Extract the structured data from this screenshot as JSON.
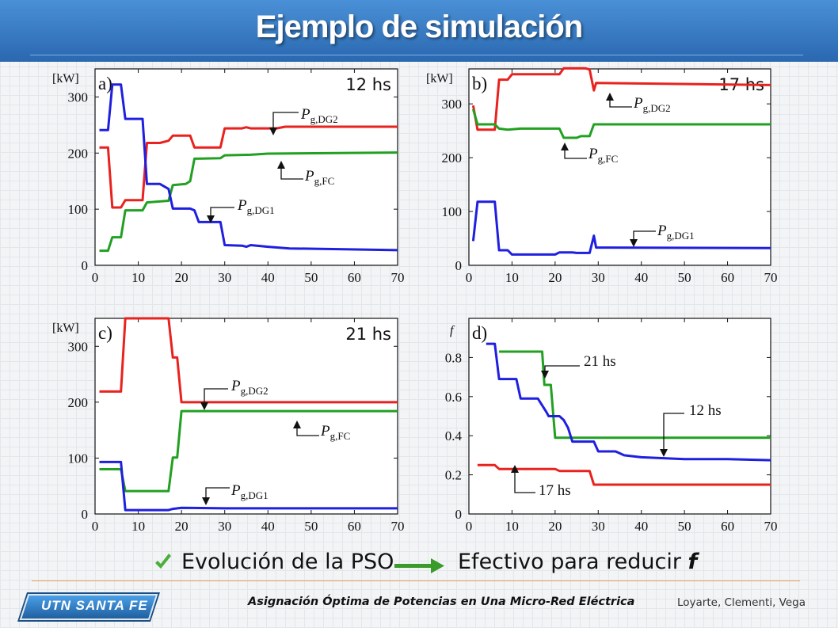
{
  "header": {
    "title": "Ejemplo de simulación"
  },
  "caption": {
    "left": "Evolución de la PSO",
    "right": "Efectivo para reducir",
    "right_var": "f",
    "check_icon": "check-icon",
    "arrow_icon": "arrow-right-icon",
    "check_color": "#4caf3a",
    "arrow_color": "#3a9a2a"
  },
  "footer": {
    "logo": "UTN SANTA FE",
    "title": "Asignación Óptima de Potencias en Una Micro-Red Eléctrica",
    "authors": "Loyarte, Clementi, Vega"
  },
  "chart_data": [
    {
      "type": "line",
      "panel": "a)",
      "hour_label": "12 hs",
      "ylabel": "[kW]",
      "xlim": [
        0,
        70
      ],
      "ylim": [
        0,
        350
      ],
      "xticks": [
        0,
        10,
        20,
        30,
        40,
        50,
        60,
        70
      ],
      "yticks": [
        0,
        100,
        200,
        300
      ],
      "series": [
        {
          "name": "P_g,DG2",
          "color": "#e8221e",
          "points": [
            [
              1,
              210
            ],
            [
              3,
              210
            ],
            [
              4,
              103
            ],
            [
              6,
              103
            ],
            [
              7,
              116
            ],
            [
              11,
              116
            ],
            [
              12,
              218
            ],
            [
              15,
              218
            ],
            [
              17,
              222
            ],
            [
              18,
              231
            ],
            [
              22,
              231
            ],
            [
              23,
              210
            ],
            [
              29,
              210
            ],
            [
              30,
              244
            ],
            [
              34,
              244
            ],
            [
              35,
              246
            ],
            [
              36,
              244
            ],
            [
              42,
              244
            ],
            [
              44,
              247
            ],
            [
              70,
              247
            ]
          ]
        },
        {
          "name": "P_g,FC",
          "color": "#21a021",
          "label_sub": "g,FC",
          "points": [
            [
              1,
              26
            ],
            [
              3,
              26
            ],
            [
              4,
              50
            ],
            [
              6,
              50
            ],
            [
              7,
              98
            ],
            [
              11,
              98
            ],
            [
              12,
              112
            ],
            [
              17,
              115
            ],
            [
              18,
              143
            ],
            [
              21,
              145
            ],
            [
              22,
              150
            ],
            [
              23,
              190
            ],
            [
              29,
              191
            ],
            [
              30,
              196
            ],
            [
              36,
              197
            ],
            [
              40,
              199
            ],
            [
              70,
              201
            ]
          ]
        },
        {
          "name": "P_g,DG1",
          "color": "#1f1fe0",
          "points": [
            [
              1,
              241
            ],
            [
              3,
              241
            ],
            [
              4,
              322
            ],
            [
              6,
              322
            ],
            [
              7,
              261
            ],
            [
              11,
              261
            ],
            [
              12,
              145
            ],
            [
              15,
              145
            ],
            [
              17,
              136
            ],
            [
              18,
              101
            ],
            [
              22,
              101
            ],
            [
              23,
              98
            ],
            [
              24,
              77
            ],
            [
              29,
              77
            ],
            [
              30,
              36
            ],
            [
              34,
              35
            ],
            [
              35,
              33
            ],
            [
              36,
              36
            ],
            [
              40,
              33
            ],
            [
              45,
              30
            ],
            [
              55,
              29
            ],
            [
              70,
              27
            ]
          ]
        }
      ],
      "annotations": [
        {
          "text": "P",
          "sub": "g,DG2"
        },
        {
          "text": "P",
          "sub": "g,FC"
        },
        {
          "text": "P",
          "sub": "g,DG1"
        }
      ]
    },
    {
      "type": "line",
      "panel": "b)",
      "hour_label": "17 hs",
      "ylabel": "[kW]",
      "xlim": [
        0,
        70
      ],
      "ylim": [
        0,
        365
      ],
      "xticks": [
        0,
        10,
        20,
        30,
        40,
        50,
        60,
        70
      ],
      "yticks": [
        0,
        100,
        200,
        300
      ],
      "series": [
        {
          "name": "P_g,DG2",
          "color": "#e8221e",
          "points": [
            [
              1,
              297
            ],
            [
              2,
              252
            ],
            [
              6,
              252
            ],
            [
              7,
              345
            ],
            [
              9,
              345
            ],
            [
              10,
              355
            ],
            [
              21,
              355
            ],
            [
              22,
              366
            ],
            [
              27,
              366
            ],
            [
              28,
              364
            ],
            [
              29,
              325
            ],
            [
              29.5,
              339
            ],
            [
              70,
              335
            ]
          ]
        },
        {
          "name": "P_g,FC",
          "color": "#21a021",
          "points": [
            [
              1,
              290
            ],
            [
              2,
              262
            ],
            [
              6,
              262
            ],
            [
              7,
              254
            ],
            [
              9,
              252
            ],
            [
              12,
              254
            ],
            [
              21,
              254
            ],
            [
              22,
              237
            ],
            [
              25,
              237
            ],
            [
              26,
              240
            ],
            [
              28,
              240
            ],
            [
              29,
              262
            ],
            [
              70,
              262
            ]
          ]
        },
        {
          "name": "P_g,DG1",
          "color": "#1f1fe0",
          "points": [
            [
              1,
              45
            ],
            [
              2,
              118
            ],
            [
              6,
              118
            ],
            [
              7,
              28
            ],
            [
              9,
              28
            ],
            [
              10,
              20
            ],
            [
              20,
              20
            ],
            [
              21,
              24
            ],
            [
              24,
              24
            ],
            [
              25,
              23
            ],
            [
              28,
              23
            ],
            [
              29,
              55
            ],
            [
              29.5,
              33
            ],
            [
              70,
              32
            ]
          ]
        }
      ],
      "annotations": [
        {
          "text": "P",
          "sub": "g,DG2"
        },
        {
          "text": "P",
          "sub": "g,FC"
        },
        {
          "text": "P",
          "sub": "g,DG1"
        }
      ]
    },
    {
      "type": "line",
      "panel": "c)",
      "hour_label": "21 hs",
      "ylabel": "[kW]",
      "xlim": [
        0,
        70
      ],
      "ylim": [
        0,
        350
      ],
      "xticks": [
        0,
        10,
        20,
        30,
        40,
        50,
        60,
        70
      ],
      "yticks": [
        0,
        100,
        200,
        300
      ],
      "series": [
        {
          "name": "P_g,DG2",
          "color": "#e8221e",
          "points": [
            [
              1,
              219
            ],
            [
              6,
              219
            ],
            [
              7,
              350
            ],
            [
              17,
              350
            ],
            [
              18,
              280
            ],
            [
              19,
              280
            ],
            [
              20,
              200
            ],
            [
              70,
              200
            ]
          ]
        },
        {
          "name": "P_g,FC",
          "color": "#21a021",
          "points": [
            [
              1,
              80
            ],
            [
              6,
              80
            ],
            [
              7,
              41
            ],
            [
              17,
              41
            ],
            [
              18,
              101
            ],
            [
              19,
              101
            ],
            [
              20,
              184
            ],
            [
              70,
              184
            ]
          ]
        },
        {
          "name": "P_g,DG1",
          "color": "#1f1fe0",
          "points": [
            [
              1,
              93
            ],
            [
              6,
              93
            ],
            [
              7,
              7
            ],
            [
              17,
              7
            ],
            [
              18,
              9
            ],
            [
              20,
              11
            ],
            [
              30,
              10
            ],
            [
              31,
              10
            ],
            [
              70,
              10
            ]
          ]
        }
      ],
      "annotations": [
        {
          "text": "P",
          "sub": "g,DG2"
        },
        {
          "text": "P",
          "sub": "g,FC"
        },
        {
          "text": "P",
          "sub": "g,DG1"
        }
      ]
    },
    {
      "type": "line",
      "panel": "d)",
      "ylabel": "f",
      "xlim": [
        0,
        70
      ],
      "ylim": [
        0,
        1.0
      ],
      "xticks": [
        0,
        10,
        20,
        30,
        40,
        50,
        60,
        70
      ],
      "yticks": [
        0,
        0.2,
        0.4,
        0.6,
        0.8
      ],
      "ytick_labels": [
        "0",
        "0.2",
        "0.4",
        "0.6",
        "0.8"
      ],
      "series": [
        {
          "name": "21 hs",
          "color": "#21a021",
          "points": [
            [
              7,
              0.83
            ],
            [
              17,
              0.83
            ],
            [
              17.5,
              0.66
            ],
            [
              19,
              0.66
            ],
            [
              20,
              0.39
            ],
            [
              70,
              0.39
            ]
          ]
        },
        {
          "name": "12 hs",
          "color": "#1f1fe0",
          "points": [
            [
              4,
              0.87
            ],
            [
              6,
              0.87
            ],
            [
              7,
              0.69
            ],
            [
              11,
              0.69
            ],
            [
              12,
              0.59
            ],
            [
              16,
              0.59
            ],
            [
              18,
              0.52
            ],
            [
              18.5,
              0.5
            ],
            [
              21,
              0.5
            ],
            [
              22,
              0.48
            ],
            [
              23,
              0.44
            ],
            [
              24,
              0.37
            ],
            [
              29,
              0.37
            ],
            [
              30,
              0.32
            ],
            [
              34,
              0.32
            ],
            [
              35,
              0.31
            ],
            [
              36,
              0.3
            ],
            [
              40,
              0.29
            ],
            [
              50,
              0.28
            ],
            [
              60,
              0.28
            ],
            [
              70,
              0.275
            ]
          ]
        },
        {
          "name": "17 hs",
          "color": "#e8221e",
          "points": [
            [
              2,
              0.25
            ],
            [
              6,
              0.25
            ],
            [
              7,
              0.23
            ],
            [
              20,
              0.23
            ],
            [
              21,
              0.22
            ],
            [
              28,
              0.22
            ],
            [
              29,
              0.15
            ],
            [
              70,
              0.15
            ]
          ]
        }
      ],
      "annotations": [
        {
          "text": "21 hs"
        },
        {
          "text": "12 hs"
        },
        {
          "text": "17 hs"
        }
      ]
    }
  ]
}
